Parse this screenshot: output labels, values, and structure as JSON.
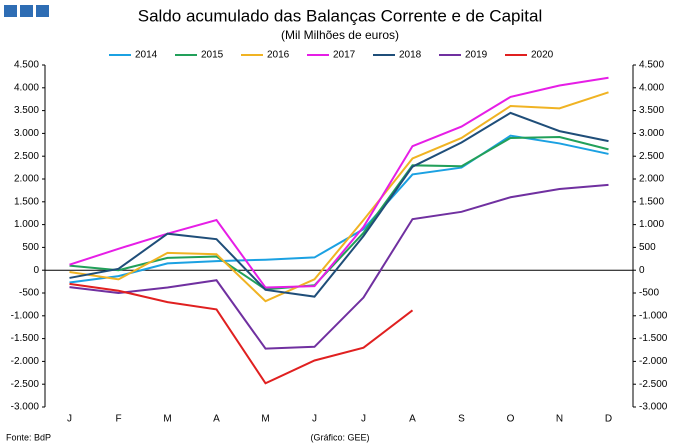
{
  "chart_data": {
    "type": "line",
    "title": "Saldo acumulado das Balanças Corrente e de Capital",
    "subtitle": "(Mil Milhões de euros)",
    "source": "Fonte: BdP",
    "credit": "(Gráfico: GEE)",
    "categories": [
      "J",
      "F",
      "M",
      "A",
      "M",
      "J",
      "J",
      "A",
      "S",
      "O",
      "N",
      "D"
    ],
    "ylim": [
      -3000,
      4500
    ],
    "yticks": [
      {
        "value": -3000,
        "label": "-3.000"
      },
      {
        "value": -2500,
        "label": "-2.500"
      },
      {
        "value": -2000,
        "label": "-2.000"
      },
      {
        "value": -1500,
        "label": "-1.500"
      },
      {
        "value": -1000,
        "label": "-1.000"
      },
      -500,
      0,
      500,
      {
        "value": 1000,
        "label": "1.000"
      },
      {
        "value": 1500,
        "label": "1.500"
      },
      {
        "value": 2000,
        "label": "2.000"
      },
      {
        "value": 2500,
        "label": "2.500"
      },
      {
        "value": 3000,
        "label": "3.000"
      },
      {
        "value": 3500,
        "label": "3.500"
      },
      {
        "value": 4000,
        "label": "4.000"
      },
      {
        "value": 4500,
        "label": "4.500"
      }
    ],
    "legend": "top",
    "series": [
      {
        "name": "2014",
        "color": "#1ba1e2",
        "values": [
          -270,
          -130,
          150,
          200,
          230,
          280,
          900,
          2100,
          2250,
          2950,
          2780,
          2550
        ]
      },
      {
        "name": "2015",
        "color": "#22a05a",
        "values": [
          100,
          0,
          270,
          300,
          -420,
          -330,
          820,
          2300,
          2280,
          2900,
          2920,
          2650
        ]
      },
      {
        "name": "2016",
        "color": "#f0b323",
        "values": [
          -40,
          -200,
          380,
          350,
          -680,
          -200,
          1100,
          2450,
          2900,
          3600,
          3550,
          3900
        ]
      },
      {
        "name": "2017",
        "color": "#e61ee6",
        "values": [
          120,
          470,
          800,
          1100,
          -380,
          -350,
          950,
          2720,
          3150,
          3800,
          4050,
          4220
        ]
      },
      {
        "name": "2018",
        "color": "#1f4e79",
        "values": [
          -170,
          30,
          800,
          680,
          -430,
          -580,
          750,
          2270,
          2800,
          3450,
          3050,
          2830
        ]
      },
      {
        "name": "2019",
        "color": "#7030a0",
        "values": [
          -370,
          -500,
          -380,
          -220,
          -1720,
          -1680,
          -600,
          1120,
          1280,
          1600,
          1780,
          1870
        ]
      },
      {
        "name": "2020",
        "color": "#e02020",
        "values": [
          -300,
          -450,
          -700,
          -860,
          -2480,
          -1980,
          -1700,
          -880,
          null,
          null,
          null,
          null
        ]
      }
    ]
  }
}
